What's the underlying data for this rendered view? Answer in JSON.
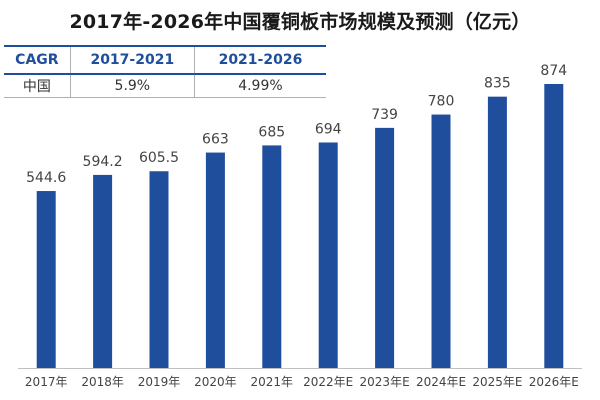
{
  "colors": {
    "bar": "#1f4e9c",
    "header": "#1f4e9c",
    "axis": "#bfbfbf"
  },
  "cagr_table": {
    "headers": [
      "CAGR",
      "2017-2021",
      "2021-2026"
    ],
    "rows": [
      {
        "label": "中国",
        "values": [
          "5.9%",
          "4.99%"
        ]
      }
    ]
  },
  "chart_data": {
    "type": "bar",
    "title": "2017年-2026年中国覆铜板市场规模及预测（亿元）",
    "categories": [
      "2017年",
      "2018年",
      "2019年",
      "2020年",
      "2021年",
      "2022年E",
      "2023年E",
      "2024年E",
      "2025年E",
      "2026年E"
    ],
    "values": [
      544.6,
      594.2,
      605.5,
      663,
      685,
      694,
      739,
      780,
      835,
      874
    ],
    "value_labels": [
      "544.6",
      "594.2",
      "605.5",
      "663",
      "685",
      "694",
      "739",
      "780",
      "835",
      "874"
    ],
    "ylim": [
      0,
      874
    ],
    "xlabel": "",
    "ylabel": "",
    "grid": false,
    "legend": "none"
  }
}
